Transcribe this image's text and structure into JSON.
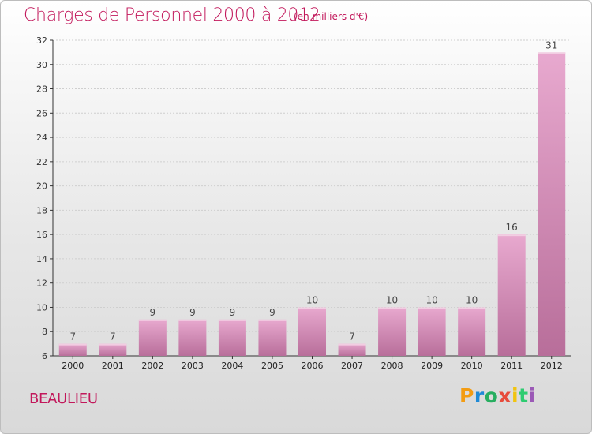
{
  "header": {
    "title": "Charges de Personnel 2000 à 2012",
    "subtitle": "(en milliers d'€)"
  },
  "footer": {
    "commune": "BEAULIEU",
    "logo_text": "Proxiti",
    "logo_colors": [
      "#f39c12",
      "#1f8ad6",
      "#27ae60",
      "#e74c3c",
      "#f1c40f",
      "#2ecc71",
      "#9b59b6"
    ]
  },
  "colors": {
    "accent": "#c2185b",
    "bar_top": "#e8a9cf",
    "bar_bottom": "#b86e9a",
    "grid": "#cfcfcf",
    "axis": "#333333"
  },
  "chart_data": {
    "type": "bar",
    "title": "Charges de Personnel 2000 à 2012",
    "subtitle": "(en milliers d'€)",
    "categories": [
      "2000",
      "2001",
      "2002",
      "2003",
      "2004",
      "2005",
      "2006",
      "2007",
      "2008",
      "2009",
      "2010",
      "2011",
      "2012"
    ],
    "values": [
      7,
      7,
      9,
      9,
      9,
      9,
      10,
      7,
      10,
      10,
      10,
      16,
      31
    ],
    "ylim": [
      6,
      32
    ],
    "yticks": [
      6,
      8,
      10,
      12,
      14,
      16,
      18,
      20,
      22,
      24,
      26,
      28,
      30,
      32
    ],
    "grid": true,
    "xlabel": "",
    "ylabel": ""
  }
}
